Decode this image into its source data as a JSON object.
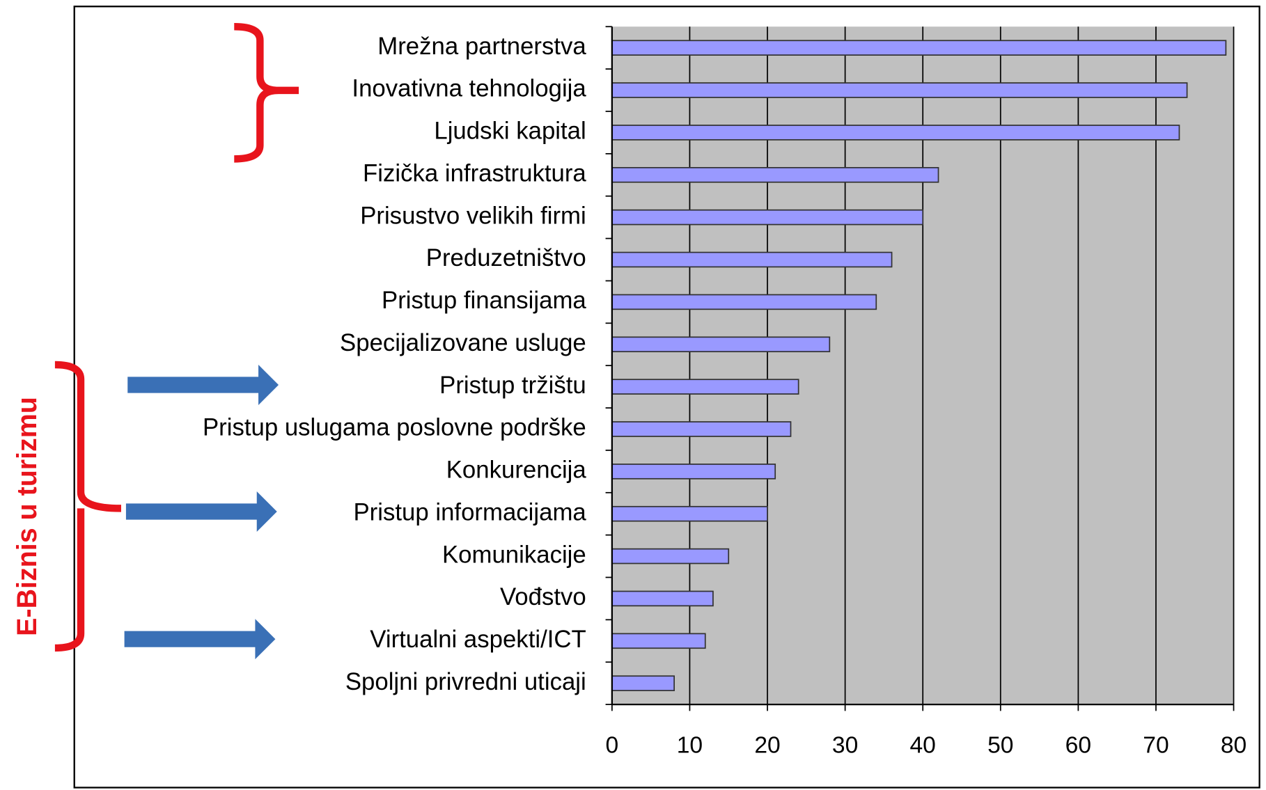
{
  "chart_data": {
    "type": "bar",
    "orientation": "horizontal",
    "categories": [
      "Mrežna partnerstva",
      "Inovativna tehnologija",
      "Ljudski kapital",
      "Fizička infrastruktura",
      "Prisustvo velikih firmi",
      "Preduzetništvo",
      "Pristup finansijama",
      "Specijalizovane usluge",
      "Pristup tržištu",
      "Pristup uslugama poslovne podrške",
      "Konkurencija",
      "Pristup informacijama",
      "Komunikacije",
      "Vođstvo",
      "Virtualni aspekti/ICT",
      "Spoljni privredni uticaji"
    ],
    "values": [
      79,
      74,
      73,
      42,
      40,
      36,
      34,
      28,
      24,
      23,
      21,
      20,
      15,
      13,
      12,
      8
    ],
    "color": "#9999ff",
    "xlim": [
      0,
      80
    ],
    "xticks": [
      0,
      10,
      20,
      30,
      40,
      50,
      60,
      70,
      80
    ],
    "grid": true,
    "annotation": "E-Biznis  u turizmu"
  }
}
